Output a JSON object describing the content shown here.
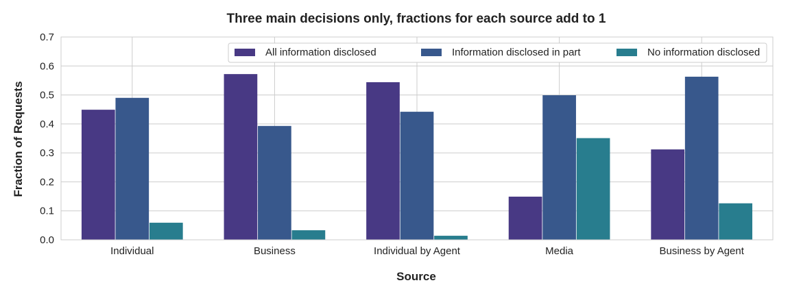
{
  "chart_data": {
    "type": "bar",
    "title": "Three main decisions only, fractions for each source add to 1",
    "xlabel": "Source",
    "ylabel": "Fraction of Requests",
    "categories": [
      "Individual",
      "Business",
      "Individual by Agent",
      "Media",
      "Business by Agent"
    ],
    "series": [
      {
        "name": "All information disclosed",
        "color": "#483984",
        "values": [
          0.449,
          0.572,
          0.544,
          0.149,
          0.312
        ]
      },
      {
        "name": "Information disclosed in part",
        "color": "#38588c",
        "values": [
          0.49,
          0.393,
          0.442,
          0.499,
          0.563
        ]
      },
      {
        "name": "No information disclosed",
        "color": "#287d8e",
        "values": [
          0.059,
          0.033,
          0.014,
          0.351,
          0.126
        ]
      }
    ],
    "ylim": [
      0,
      0.7
    ],
    "yticks": [
      "0.0",
      "0.1",
      "0.2",
      "0.3",
      "0.4",
      "0.5",
      "0.6",
      "0.7"
    ],
    "grid": true,
    "legend_position": "top-right"
  }
}
